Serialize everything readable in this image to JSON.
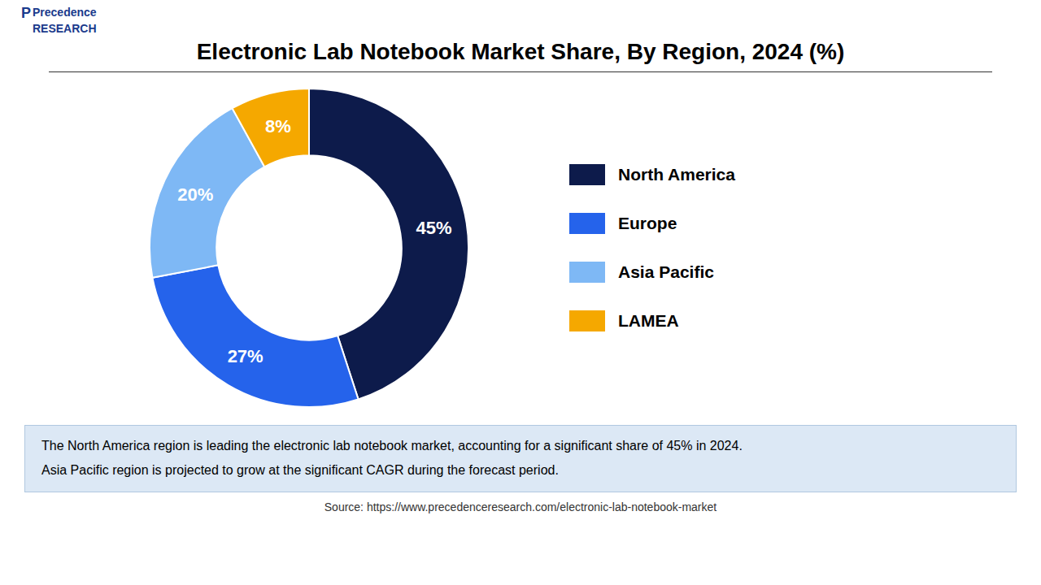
{
  "chart_data": {
    "type": "pie",
    "title": "Electronic Lab Notebook Market Share, By Region, 2024 (%)",
    "categories": [
      "North America",
      "Europe",
      "Asia Pacific",
      "LAMEA"
    ],
    "values": [
      45,
      27,
      20,
      8
    ],
    "value_labels": [
      "45%",
      "27%",
      "20%",
      "8%"
    ],
    "colors": [
      "#0d1b4b",
      "#2563eb",
      "#7eb8f5",
      "#f5a800"
    ],
    "data_labels": true,
    "legend": "right",
    "annotations": [
      "The North America region is leading the electronic lab notebook market, accounting for a significant share of 45% in 2024.\nAsia Pacific region is projected to grow at the significant CAGR during the forecast period.",
      "Source: https://www.precedenceresearch.com/electronic-lab-notebook-market",
      "Precedence\nRESEARCH",
      "P"
    ]
  }
}
